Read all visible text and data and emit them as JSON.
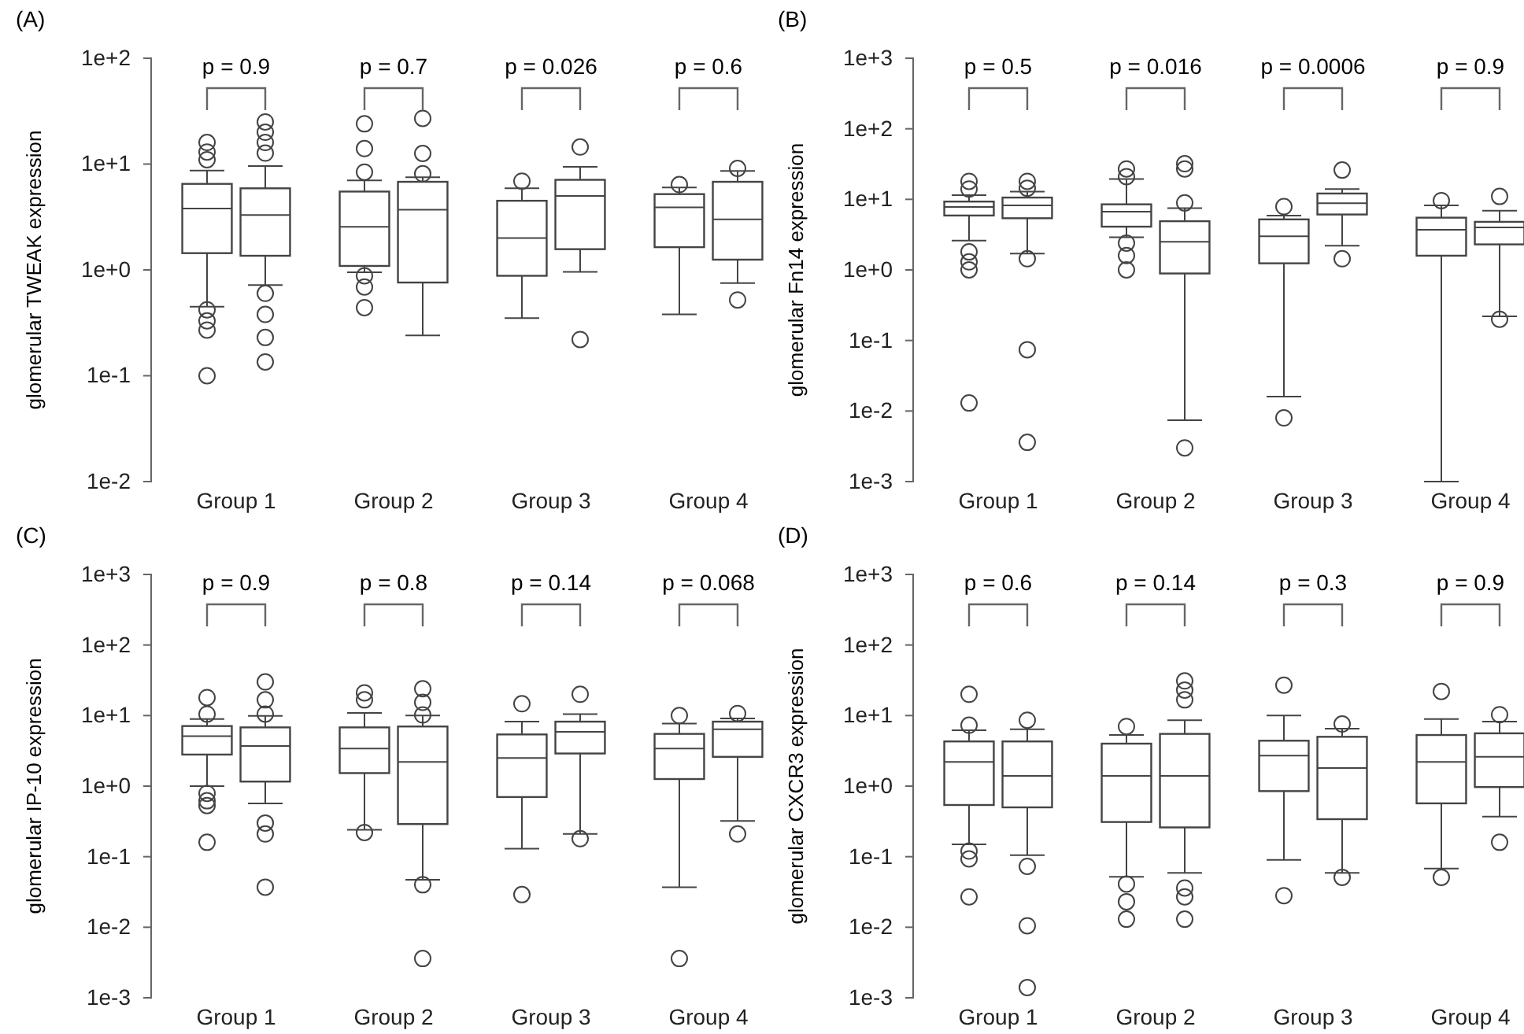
{
  "chart_data": [
    {
      "type": "box",
      "title": "(A)",
      "ylabel": "glomerular TWEAK expression",
      "categories": [
        "Group 1",
        "Group 2",
        "Group 3",
        "Group 4"
      ],
      "log": true,
      "ylim": [
        0.01,
        100
      ],
      "yticks": [
        {
          "value": 0.01,
          "label": "1e-2"
        },
        {
          "value": 0.1,
          "label": "1e-1"
        },
        {
          "value": 1,
          "label": "1e+0"
        },
        {
          "value": 10,
          "label": "1e+1"
        },
        {
          "value": 100,
          "label": "1e+2"
        }
      ],
      "series": [
        {
          "color": "#444444",
          "boxes": [
            {
              "low": 0.45,
              "q1": 1.44,
              "median": 3.8,
              "q3": 6.5,
              "high": 8.7,
              "outliers": [
                16,
                13,
                11,
                0.42,
                0.33,
                0.27,
                0.1
              ]
            },
            {
              "low": 0.95,
              "q1": 1.09,
              "median": 2.55,
              "q3": 5.5,
              "high": 7.0,
              "outliers": [
                24,
                14,
                8.4,
                0.88,
                0.69,
                0.44
              ]
            },
            {
              "low": 0.35,
              "q1": 0.88,
              "median": 2.0,
              "q3": 4.5,
              "high": 5.9,
              "outliers": [
                6.9
              ]
            },
            {
              "low": 0.38,
              "q1": 1.64,
              "median": 3.9,
              "q3": 5.2,
              "high": 6.0,
              "outliers": [
                6.4
              ]
            }
          ]
        },
        {
          "color": "#444444",
          "boxes": [
            {
              "low": 0.72,
              "q1": 1.36,
              "median": 3.3,
              "q3": 5.9,
              "high": 9.6,
              "outliers": [
                25,
                20,
                16,
                12.7,
                0.6,
                0.38,
                0.23,
                0.135
              ]
            },
            {
              "low": 0.24,
              "q1": 0.76,
              "median": 3.7,
              "q3": 6.8,
              "high": 7.5,
              "outliers": [
                27,
                12.6,
                8.1
              ]
            },
            {
              "low": 0.96,
              "q1": 1.57,
              "median": 5.0,
              "q3": 7.1,
              "high": 9.4,
              "outliers": [
                14.5,
                0.22
              ]
            },
            {
              "low": 0.75,
              "q1": 1.25,
              "median": 3.0,
              "q3": 6.8,
              "high": 8.6,
              "outliers": [
                9.1,
                0.52
              ]
            }
          ]
        }
      ],
      "annotations": [
        "p = 0.9",
        "p = 0.7",
        "p = 0.026",
        "p = 0.6"
      ]
    },
    {
      "type": "box",
      "title": "(B)",
      "ylabel": "glomerular Fn14 expression",
      "categories": [
        "Group 1",
        "Group 2",
        "Group 3",
        "Group 4"
      ],
      "log": true,
      "ylim": [
        0.001,
        1000
      ],
      "yticks": [
        {
          "value": 0.001,
          "label": "1e-3"
        },
        {
          "value": 0.01,
          "label": "1e-2"
        },
        {
          "value": 0.1,
          "label": "1e-1"
        },
        {
          "value": 1,
          "label": "1e+0"
        },
        {
          "value": 10,
          "label": "1e+1"
        },
        {
          "value": 100,
          "label": "1e+2"
        },
        {
          "value": 1000,
          "label": "1e+3"
        }
      ],
      "series": [
        {
          "color": "#444444",
          "boxes": [
            {
              "low": 2.6,
              "q1": 5.9,
              "median": 7.8,
              "q3": 9.3,
              "high": 11.5,
              "outliers": [
                18,
                14,
                1.8,
                1.3,
                1.0,
                0.013
              ]
            },
            {
              "low": 2.9,
              "q1": 4.1,
              "median": 6.7,
              "q3": 8.5,
              "high": 19.4,
              "outliers": [
                27,
                21,
                2.4,
                1.6,
                1.0
              ]
            },
            {
              "low": 0.016,
              "q1": 1.24,
              "median": 3.0,
              "q3": 5.2,
              "high": 5.9,
              "outliers": [
                7.9,
                0.008
              ]
            },
            {
              "low": 0.001,
              "q1": 1.59,
              "median": 3.7,
              "q3": 5.5,
              "high": 8.2,
              "outliers": [
                9.6
              ]
            }
          ]
        },
        {
          "color": "#444444",
          "boxes": [
            {
              "low": 1.7,
              "q1": 5.4,
              "median": 8.2,
              "q3": 10.6,
              "high": 12.9,
              "outliers": [
                18,
                14.4,
                1.44,
                0.074,
                0.0036
              ]
            },
            {
              "low": 0.0074,
              "q1": 0.89,
              "median": 2.5,
              "q3": 4.9,
              "high": 7.5,
              "outliers": [
                32,
                27,
                8.9,
                0.003
              ]
            },
            {
              "low": 2.2,
              "q1": 6.1,
              "median": 8.8,
              "q3": 12.1,
              "high": 14,
              "outliers": [
                26,
                1.44
              ]
            },
            {
              "low": 0.22,
              "q1": 2.3,
              "median": 4.0,
              "q3": 4.8,
              "high": 6.9,
              "outliers": [
                11,
                0.2
              ]
            }
          ]
        }
      ],
      "annotations": [
        "p = 0.5",
        "p = 0.016",
        "p = 0.0006",
        "p = 0.9"
      ]
    },
    {
      "type": "box",
      "title": "(C)",
      "ylabel": "glomerular IP-10 expression",
      "categories": [
        "Group 1",
        "Group 2",
        "Group 3",
        "Group 4"
      ],
      "log": true,
      "ylim": [
        0.001,
        1000
      ],
      "yticks": [
        {
          "value": 0.001,
          "label": "1e-3"
        },
        {
          "value": 0.01,
          "label": "1e-2"
        },
        {
          "value": 0.1,
          "label": "1e-1"
        },
        {
          "value": 1,
          "label": "1e+0"
        },
        {
          "value": 10,
          "label": "1e+1"
        },
        {
          "value": 100,
          "label": "1e+2"
        },
        {
          "value": 1000,
          "label": "1e+3"
        }
      ],
      "series": [
        {
          "color": "#444444",
          "boxes": [
            {
              "low": 1.0,
              "q1": 2.8,
              "median": 5.1,
              "q3": 7.1,
              "high": 8.9,
              "outliers": [
                18,
                10.5,
                0.79,
                0.62,
                0.53,
                0.16
              ]
            },
            {
              "low": 0.24,
              "q1": 1.53,
              "median": 3.4,
              "q3": 6.8,
              "high": 10.9,
              "outliers": [
                21,
                16.7,
                0.22
              ]
            },
            {
              "low": 0.13,
              "q1": 0.7,
              "median": 2.5,
              "q3": 5.4,
              "high": 8.2,
              "outliers": [
                14.7,
                0.029
              ]
            },
            {
              "low": 0.037,
              "q1": 1.26,
              "median": 3.4,
              "q3": 5.5,
              "high": 7.7,
              "outliers": [
                10,
                0.0036
              ]
            }
          ]
        },
        {
          "color": "#444444",
          "boxes": [
            {
              "low": 0.57,
              "q1": 1.16,
              "median": 3.7,
              "q3": 6.8,
              "high": 9.9,
              "outliers": [
                30,
                16.7,
                10.5,
                0.3,
                0.21,
                0.037
              ]
            },
            {
              "low": 0.047,
              "q1": 0.29,
              "median": 2.2,
              "q3": 7.0,
              "high": 10,
              "outliers": [
                24,
                15.4,
                10.2,
                0.04,
                0.0036
              ]
            },
            {
              "low": 0.21,
              "q1": 2.9,
              "median": 5.9,
              "q3": 8.2,
              "high": 10.5,
              "outliers": [
                20,
                0.18
              ]
            },
            {
              "low": 0.32,
              "q1": 2.6,
              "median": 6.4,
              "q3": 8.2,
              "high": 9.1,
              "outliers": [
                10.7,
                0.21
              ]
            }
          ]
        }
      ],
      "annotations": [
        "p = 0.9",
        "p = 0.8",
        "p = 0.14",
        "p = 0.068"
      ]
    },
    {
      "type": "box",
      "title": "(D)",
      "ylabel": "glomerular CXCR3 expression",
      "categories": [
        "Group 1",
        "Group 2",
        "Group 3",
        "Group 4"
      ],
      "log": true,
      "ylim": [
        0.001,
        1000
      ],
      "yticks": [
        {
          "value": 0.001,
          "label": "1e-3"
        },
        {
          "value": 0.01,
          "label": "1e-2"
        },
        {
          "value": 0.1,
          "label": "1e-1"
        },
        {
          "value": 1,
          "label": "1e+0"
        },
        {
          "value": 10,
          "label": "1e+1"
        },
        {
          "value": 100,
          "label": "1e+2"
        },
        {
          "value": 1000,
          "label": "1e+3"
        }
      ],
      "series": [
        {
          "color": "#444444",
          "boxes": [
            {
              "low": 0.15,
              "q1": 0.54,
              "median": 2.2,
              "q3": 4.3,
              "high": 6.2,
              "outliers": [
                20,
                7.3,
                0.12,
                0.093,
                0.027
              ]
            },
            {
              "low": 0.052,
              "q1": 0.31,
              "median": 1.4,
              "q3": 4.0,
              "high": 5.3,
              "outliers": [
                7.0,
                0.041,
                0.023,
                0.013
              ]
            },
            {
              "low": 0.09,
              "q1": 0.85,
              "median": 2.7,
              "q3": 4.4,
              "high": 10,
              "outliers": [
                27,
                0.028
              ]
            },
            {
              "low": 0.068,
              "q1": 0.57,
              "median": 2.2,
              "q3": 5.3,
              "high": 8.9,
              "outliers": [
                22,
                0.051
              ]
            }
          ]
        },
        {
          "color": "#444444",
          "boxes": [
            {
              "low": 0.105,
              "q1": 0.5,
              "median": 1.4,
              "q3": 4.3,
              "high": 6.4,
              "outliers": [
                8.6,
                0.073,
                0.0105,
                0.0014
              ]
            },
            {
              "low": 0.059,
              "q1": 0.26,
              "median": 1.4,
              "q3": 5.5,
              "high": 8.6,
              "outliers": [
                31,
                23,
                16.7,
                0.036,
                0.027,
                0.013
              ]
            },
            {
              "low": 0.059,
              "q1": 0.34,
              "median": 1.8,
              "q3": 5.0,
              "high": 6.5,
              "outliers": [
                7.6,
                0.051
              ]
            },
            {
              "low": 0.37,
              "q1": 0.97,
              "median": 2.6,
              "q3": 5.6,
              "high": 8.2,
              "outliers": [
                10.3,
                0.16
              ]
            }
          ]
        }
      ],
      "annotations": [
        "p = 0.6",
        "p = 0.14",
        "p = 0.3",
        "p = 0.9"
      ]
    }
  ]
}
